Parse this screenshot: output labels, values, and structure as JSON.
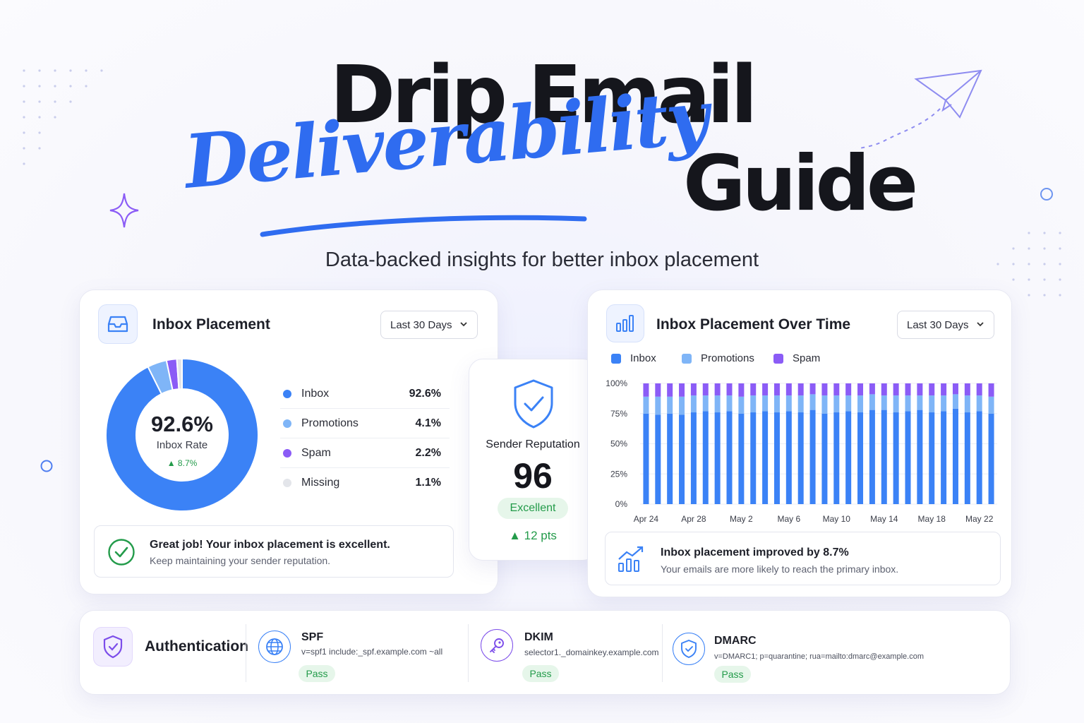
{
  "hero": {
    "title_line1": "Drip Email",
    "title_script": "Deliverability",
    "title_end": "Guide",
    "subtitle": "Data-backed insights for better inbox placement"
  },
  "colors": {
    "accent_blue": "#2f6cf0",
    "inbox": "#3b82f6",
    "promotions": "#7fb5f7",
    "spam": "#8b5cf6",
    "missing": "#e3e5ea",
    "success": "#239b4a"
  },
  "placement_card": {
    "icon": "inbox-tray-icon",
    "title": "Inbox Placement",
    "range": "Last 30 Days",
    "center_value": "92.6%",
    "center_label": "Inbox Rate",
    "center_delta": "▲ 8.7%",
    "legend": [
      {
        "label": "Inbox",
        "value": "92.6%"
      },
      {
        "label": "Promotions",
        "value": "4.1%"
      },
      {
        "label": "Spam",
        "value": "2.2%"
      },
      {
        "label": "Missing",
        "value": "1.1%"
      }
    ],
    "note_title": "Great job! Your inbox placement is excellent.",
    "note_sub": "Keep maintaining your sender reputation.",
    "note_icon": "check-circle-icon"
  },
  "reputation_card": {
    "icon": "shield-check-icon",
    "title": "Sender Reputation",
    "score": "96",
    "badge": "Excellent",
    "delta": "▲ 12 pts"
  },
  "timeline_card": {
    "icon": "bar-chart-icon",
    "title": "Inbox Placement Over Time",
    "range": "Last 30 Days",
    "note_icon": "trend-up-chart-icon",
    "note_title": "Inbox placement improved by 8.7%",
    "note_sub": "Your emails are more likely to reach the primary inbox."
  },
  "auth": {
    "icon": "shield-check-icon",
    "title": "Authentication",
    "items": [
      {
        "name": "SPF",
        "value": "v=spf1 include:_spf.example.com ~all",
        "status": "Pass",
        "icon": "globe-icon"
      },
      {
        "name": "DKIM",
        "value": "selector1._domainkey.example.com",
        "status": "Pass",
        "icon": "key-icon"
      },
      {
        "name": "DMARC",
        "value": "v=DMARC1; p=quarantine; rua=mailto:dmarc@example.com",
        "status": "Pass",
        "icon": "shield-check-icon"
      }
    ]
  },
  "chart_data": [
    {
      "type": "pie",
      "title": "Inbox Placement",
      "categories": [
        "Inbox",
        "Promotions",
        "Spam",
        "Missing"
      ],
      "values": [
        92.6,
        4.1,
        2.2,
        1.1
      ]
    },
    {
      "type": "bar",
      "stacked": true,
      "title": "Inbox Placement Over Time",
      "x_tick_labels": [
        "Apr 24",
        "Apr 28",
        "May 2",
        "May 6",
        "May 10",
        "May 14",
        "May 18",
        "May 22"
      ],
      "y_tick_labels": [
        "100%",
        "75%",
        "50%",
        "25%",
        "0%"
      ],
      "ylim": [
        0,
        100
      ],
      "legend_position": "top-left",
      "grid": true,
      "series": [
        {
          "name": "Inbox",
          "values": [
            75,
            74,
            75,
            74,
            76,
            77,
            76,
            77,
            75,
            76,
            77,
            76,
            77,
            76,
            78,
            75,
            76,
            77,
            76,
            78,
            78,
            76,
            77,
            78,
            76,
            77,
            79,
            76,
            77,
            75
          ]
        },
        {
          "name": "Promotions",
          "values": [
            14,
            15,
            14,
            15,
            14,
            13,
            14,
            13,
            14,
            14,
            13,
            14,
            13,
            14,
            13,
            15,
            14,
            13,
            14,
            13,
            12,
            14,
            13,
            12,
            14,
            13,
            12,
            14,
            13,
            14
          ]
        },
        {
          "name": "Spam",
          "values": [
            11,
            11,
            11,
            11,
            10,
            10,
            10,
            10,
            11,
            10,
            10,
            10,
            10,
            10,
            9,
            10,
            10,
            10,
            10,
            9,
            10,
            10,
            10,
            10,
            10,
            10,
            9,
            10,
            10,
            11
          ]
        }
      ]
    }
  ]
}
